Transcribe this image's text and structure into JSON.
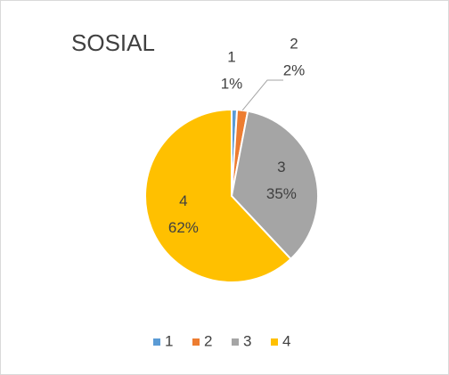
{
  "chart_data": {
    "type": "pie",
    "title": "SOSIAL",
    "categories": [
      "1",
      "2",
      "3",
      "4"
    ],
    "values": [
      1,
      2,
      35,
      62
    ],
    "value_labels": [
      "1%",
      "2%",
      "35%",
      "62%"
    ],
    "colors": [
      "#5b9bd5",
      "#ed7d31",
      "#a5a5a5",
      "#ffc000"
    ],
    "legend": "bottom"
  }
}
